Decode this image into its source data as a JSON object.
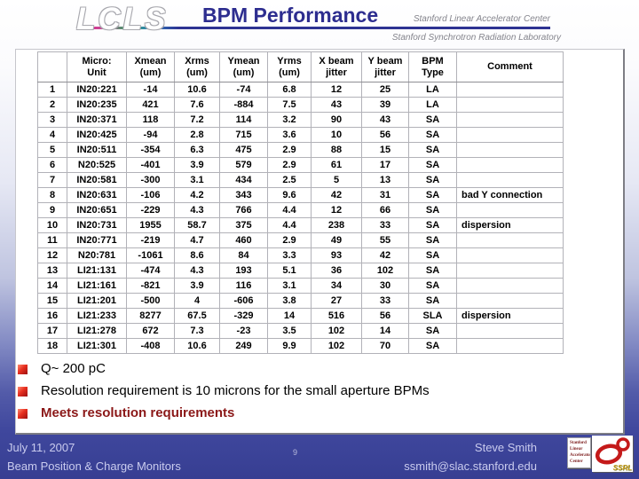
{
  "slide": {
    "logo": "LCLS",
    "title": "BPM Performance",
    "org_line1": "Stanford Linear Accelerator Center",
    "org_line2": "Stanford Synchrotron Radiation Laboratory"
  },
  "table": {
    "headers": [
      {
        "line1": "",
        "line2": ""
      },
      {
        "line1": "Micro:",
        "line2": "Unit"
      },
      {
        "line1": "Xmean",
        "line2": "(um)"
      },
      {
        "line1": "Xrms",
        "line2": "(um)"
      },
      {
        "line1": "Ymean",
        "line2": "(um)"
      },
      {
        "line1": "Yrms",
        "line2": "(um)"
      },
      {
        "line1": "X beam",
        "line2": "jitter"
      },
      {
        "line1": "Y beam",
        "line2": "jitter"
      },
      {
        "line1": "BPM",
        "line2": "Type"
      },
      {
        "line1": "Comment",
        "line2": ""
      }
    ],
    "rows": [
      [
        "1",
        "IN20:221",
        "-14",
        "10.6",
        "-74",
        "6.8",
        "12",
        "25",
        "LA",
        ""
      ],
      [
        "2",
        "IN20:235",
        "421",
        "7.6",
        "-884",
        "7.5",
        "43",
        "39",
        "LA",
        ""
      ],
      [
        "3",
        "IN20:371",
        "118",
        "7.2",
        "114",
        "3.2",
        "90",
        "43",
        "SA",
        ""
      ],
      [
        "4",
        "IN20:425",
        "-94",
        "2.8",
        "715",
        "3.6",
        "10",
        "56",
        "SA",
        ""
      ],
      [
        "5",
        "IN20:511",
        "-354",
        "6.3",
        "475",
        "2.9",
        "88",
        "15",
        "SA",
        ""
      ],
      [
        "6",
        "N20:525",
        "-401",
        "3.9",
        "579",
        "2.9",
        "61",
        "17",
        "SA",
        ""
      ],
      [
        "7",
        "IN20:581",
        "-300",
        "3.1",
        "434",
        "2.5",
        "5",
        "13",
        "SA",
        ""
      ],
      [
        "8",
        "IN20:631",
        "-106",
        "4.2",
        "343",
        "9.6",
        "42",
        "31",
        "SA",
        "bad Y connection"
      ],
      [
        "9",
        "IN20:651",
        "-229",
        "4.3",
        "766",
        "4.4",
        "12",
        "66",
        "SA",
        ""
      ],
      [
        "10",
        "IN20:731",
        "1955",
        "58.7",
        "375",
        "4.4",
        "238",
        "33",
        "SA",
        "dispersion"
      ],
      [
        "11",
        "IN20:771",
        "-219",
        "4.7",
        "460",
        "2.9",
        "49",
        "55",
        "SA",
        ""
      ],
      [
        "12",
        "N20:781",
        "-1061",
        "8.6",
        "84",
        "3.3",
        "93",
        "42",
        "SA",
        ""
      ],
      [
        "13",
        "LI21:131",
        "-474",
        "4.3",
        "193",
        "5.1",
        "36",
        "102",
        "SA",
        ""
      ],
      [
        "14",
        "LI21:161",
        "-821",
        "3.9",
        "116",
        "3.1",
        "34",
        "30",
        "SA",
        ""
      ],
      [
        "15",
        "LI21:201",
        "-500",
        "4",
        "-606",
        "3.8",
        "27",
        "33",
        "SA",
        ""
      ],
      [
        "16",
        "LI21:233",
        "8277",
        "67.5",
        "-329",
        "14",
        "516",
        "56",
        "SLA",
        "dispersion"
      ],
      [
        "17",
        "LI21:278",
        "672",
        "7.3",
        "-23",
        "3.5",
        "102",
        "14",
        "SA",
        ""
      ],
      [
        "18",
        "LI21:301",
        "-408",
        "10.6",
        "249",
        "9.9",
        "102",
        "70",
        "SA",
        ""
      ]
    ]
  },
  "bullets": [
    {
      "text": "Q~ 200 pC",
      "emphasis": false
    },
    {
      "text": "Resolution requirement is 10 microns for the small aperture BPMs",
      "emphasis": false
    },
    {
      "text": "Meets resolution requirements",
      "emphasis": true
    }
  ],
  "footer": {
    "date": "July 11, 2007",
    "deck_title": "Beam Position & Charge Monitors",
    "page": "9",
    "author": "Steve Smith",
    "email": "ssmith@slac.stanford.edu",
    "slac_logo_lines": [
      "Stanford",
      "Linear",
      "Accelerator",
      "Center"
    ],
    "ssrl_label": "SSRL"
  },
  "colors": {
    "title_navy": "#2d2d8f",
    "emphasis_red": "#8b1818",
    "bullet_red": "#c01818",
    "footer_text": "#c9cbee",
    "background_bottom": "#373e92",
    "ssrl_red": "#c41a1a",
    "ssrl_gold": "#c8a020"
  }
}
